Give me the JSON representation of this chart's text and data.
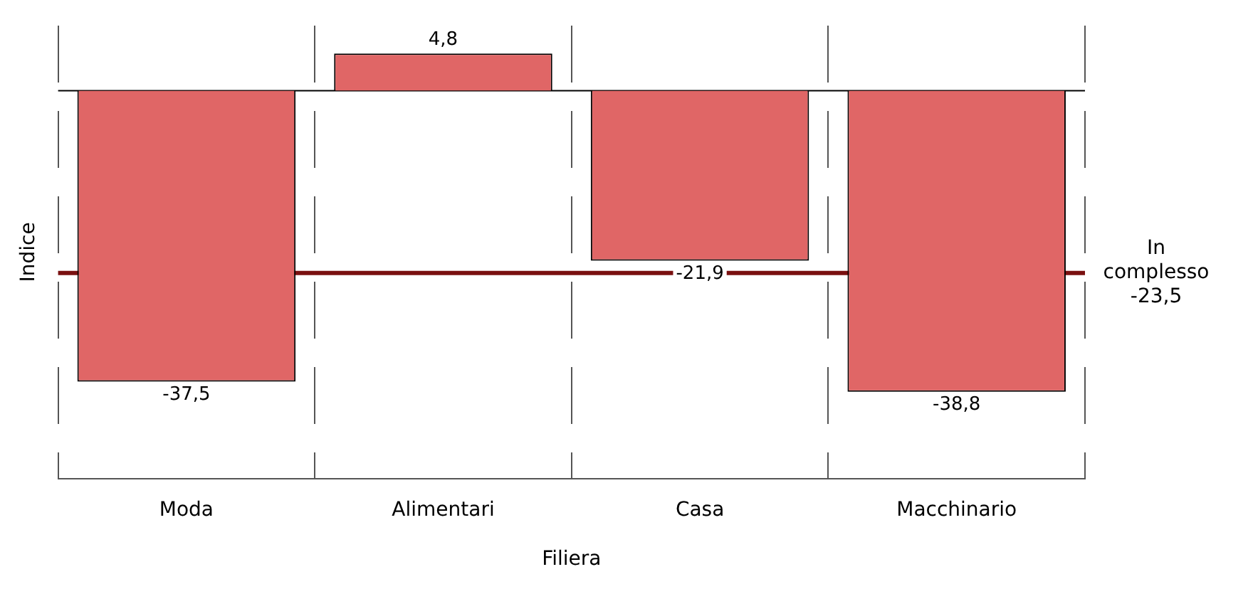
{
  "chart_data": {
    "type": "bar",
    "xlabel": "Filiera",
    "ylabel": "Indice",
    "categories": [
      "Moda",
      "Alimentari",
      "Casa",
      "Macchinario"
    ],
    "values": [
      -37.5,
      4.8,
      -21.9,
      -38.8
    ],
    "value_labels": [
      "-37,5",
      "4,8",
      "-21,9",
      "-38,8"
    ],
    "color": "#e06666",
    "ylim": [
      -50,
      8.4
    ],
    "grid": "x",
    "ref_lines": [
      {
        "axis": "y",
        "value": 0,
        "color": "#000000"
      },
      {
        "axis": "y",
        "value": -23.5,
        "label": "In complesso -23,5",
        "color": "#7a1010"
      }
    ]
  }
}
